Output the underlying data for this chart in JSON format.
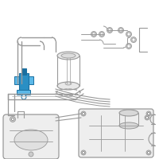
{
  "bg": "#f5f5f5",
  "white": "#ffffff",
  "lc": "#999999",
  "lc_dark": "#777777",
  "hc_blue": "#2a8fc4",
  "hc_blue2": "#5bb8e8",
  "hc_blue_dark": "#1a6fa0",
  "figsize": [
    2.0,
    2.0
  ],
  "dpi": 100
}
